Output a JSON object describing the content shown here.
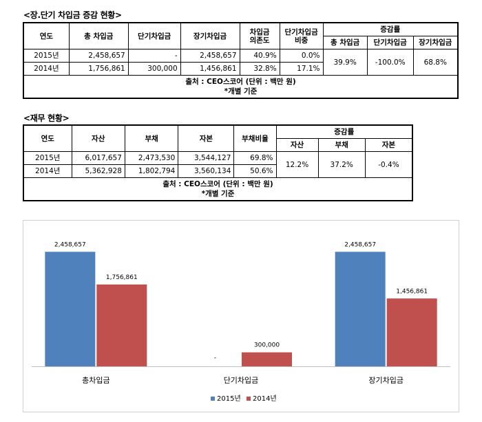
{
  "table1": {
    "title": "<장.단기 차입금 증감 현황>",
    "headers": {
      "year": "연도",
      "total": "총 차입금",
      "short": "단기차입금",
      "long": "장기차입금",
      "dependency_l1": "차입금",
      "dependency_l2": "의존도",
      "short_ratio_l1": "단기차입금",
      "short_ratio_l2": "비중",
      "change": "증감률",
      "change_total": "총 차입금",
      "change_short": "단기차입금",
      "change_long": "장기차입금"
    },
    "rows": [
      {
        "year": "2015년",
        "total": "2,458,657",
        "short": "-",
        "long": "2,458,657",
        "dependency": "40.9%",
        "short_ratio": "0.0%"
      },
      {
        "year": "2014년",
        "total": "1,756,861",
        "short": "300,000",
        "long": "1,456,861",
        "dependency": "32.8%",
        "short_ratio": "17.1%"
      }
    ],
    "change_values": {
      "total": "39.9%",
      "short": "-100.0%",
      "long": "68.8%"
    },
    "source_line1": "출처 : CEO스코어 (단위 : 백만 원)",
    "source_line2": "*개별 기준"
  },
  "table2": {
    "title": "<재무 현황>",
    "headers": {
      "year": "연도",
      "assets": "자산",
      "liabilities": "부채",
      "equity": "자본",
      "debt_ratio": "부채비율",
      "change": "증감률",
      "change_assets": "자산",
      "change_liabilities": "부채",
      "change_equity": "자본"
    },
    "rows": [
      {
        "year": "2015년",
        "assets": "6,017,657",
        "liabilities": "2,473,530",
        "equity": "3,544,127",
        "debt_ratio": "69.8%"
      },
      {
        "year": "2014년",
        "assets": "5,362,928",
        "liabilities": "1,802,794",
        "equity": "3,560,134",
        "debt_ratio": "50.6%"
      }
    ],
    "change_values": {
      "assets": "12.2%",
      "liabilities": "37.2%",
      "equity": "-0.4%"
    },
    "source_line1": "출처 : CEO스코어 (단위 : 백만 원)",
    "source_line2": "*개별 기준"
  },
  "chart_data": {
    "type": "bar",
    "categories": [
      "총차입금",
      "단기차입금",
      "장기차입금"
    ],
    "series": [
      {
        "name": "2015년",
        "values": [
          2458657,
          0,
          2458657
        ],
        "labels": [
          "2,458,657",
          "-",
          "2,458,657"
        ],
        "color": "#4f81bd"
      },
      {
        "name": "2014년",
        "values": [
          1756861,
          300000,
          1456861
        ],
        "labels": [
          "1,756,861",
          "300,000",
          "1,456,861"
        ],
        "color": "#c0504d"
      }
    ],
    "ylim": [
      0,
      2700000
    ],
    "grid": false,
    "legend": "bottom"
  }
}
